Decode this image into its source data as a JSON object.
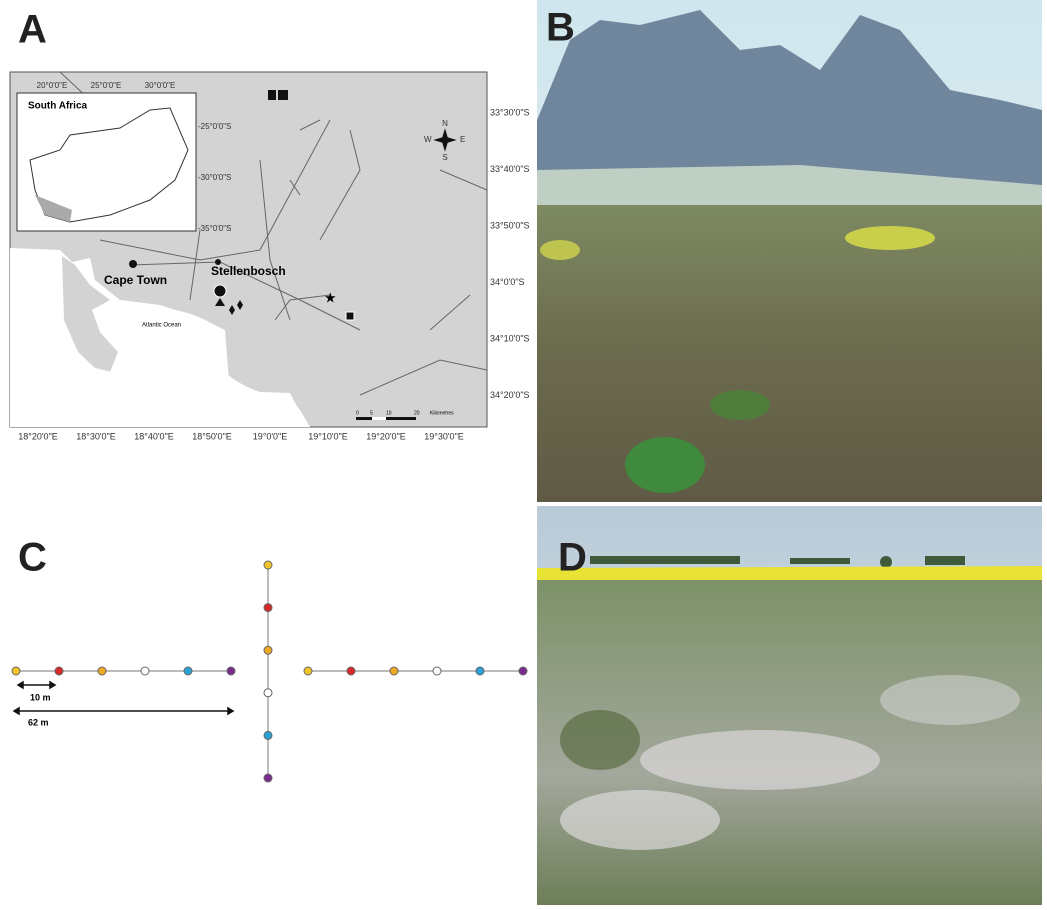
{
  "panels": {
    "a": {
      "label": "A",
      "inset_title": "South Africa",
      "inset_lon_labels": [
        "20°0'0\"E",
        "25°0'0\"E",
        "30°0'0\"E"
      ],
      "inset_lat_labels": [
        "-25°0'0\"S",
        "-30°0'0\"S",
        "-35°0'0\"S"
      ],
      "places": [
        "Cape Town",
        "Stellenbosch",
        "Atlantic Ocean"
      ],
      "compass": [
        "N",
        "E",
        "S",
        "W"
      ],
      "scale_labels": [
        "0",
        "5",
        "10",
        "20",
        "Kilometres"
      ],
      "lon_labels": [
        "18°20'0\"E",
        "18°30'0\"E",
        "18°40'0\"E",
        "18°50'0\"E",
        "19°0'0\"E",
        "19°10'0\"E",
        "19°20'0\"E",
        "19°30'0\"E"
      ],
      "lat_labels": [
        "33°30'0\"S",
        "33°40'0\"S",
        "33°50'0\"S",
        "34°0'0\"S",
        "34°10'0\"S",
        "34°20'0\"S"
      ]
    },
    "b": {
      "label": "B"
    },
    "c": {
      "label": "C",
      "spacing_label": "10 m",
      "length_label": "62 m"
    },
    "d": {
      "label": "D"
    }
  }
}
